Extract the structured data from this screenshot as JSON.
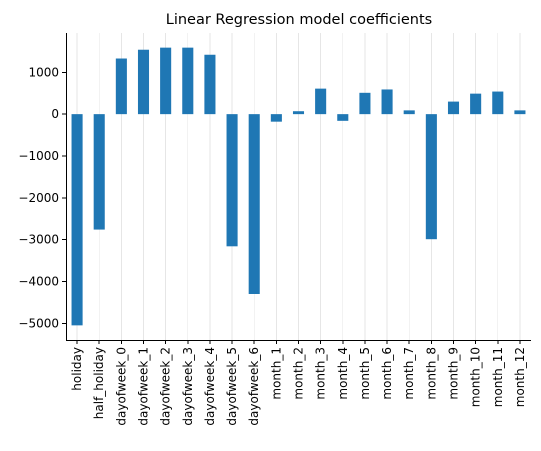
{
  "chart_data": {
    "type": "bar",
    "title": "Linear Regression model coefficients",
    "xlabel": "",
    "ylabel": "",
    "categories": [
      "holiday",
      "half_holiday",
      "dayofweek_0",
      "dayofweek_1",
      "dayofweek_2",
      "dayofweek_3",
      "dayofweek_4",
      "dayofweek_5",
      "dayofweek_6",
      "month_1",
      "month_2",
      "month_3",
      "month_4",
      "month_5",
      "month_6",
      "month_7",
      "month_8",
      "month_9",
      "month_10",
      "month_11",
      "month_12"
    ],
    "values": [
      -5050,
      -2760,
      1330,
      1540,
      1590,
      1590,
      1420,
      -3160,
      -4300,
      -180,
      70,
      610,
      -160,
      510,
      590,
      90,
      -2990,
      300,
      490,
      540,
      90
    ],
    "ylim": [
      -5400,
      1940
    ],
    "yticks": [
      1000,
      0,
      -1000,
      -2000,
      -3000,
      -4000,
      -5000
    ],
    "ytick_labels": [
      "1000",
      "0",
      "−1000",
      "−2000",
      "−3000",
      "−4000",
      "−5000"
    ],
    "grid": "x",
    "legend": "none",
    "colors": {
      "bar": "#1f77b4",
      "grid": "#e6e6e6",
      "axis": "#000000"
    }
  }
}
